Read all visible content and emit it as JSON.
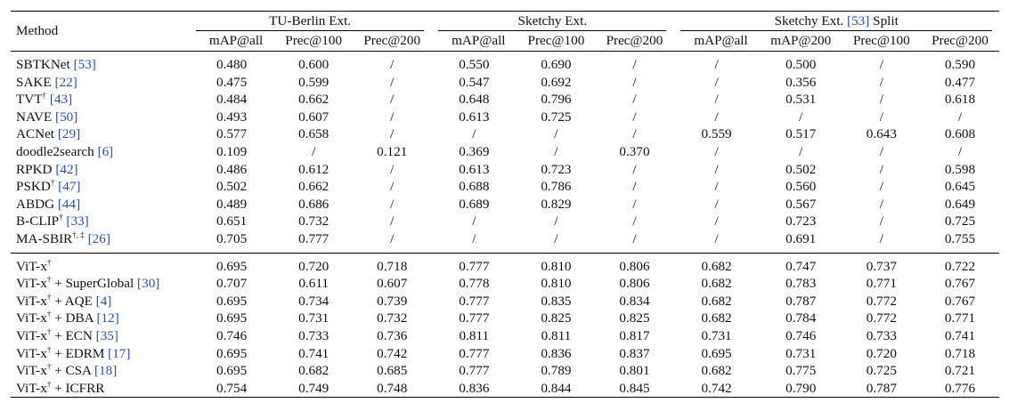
{
  "header": {
    "method": "Method",
    "groups": [
      {
        "title": "TU-Berlin Ext.",
        "cite": ""
      },
      {
        "title": "Sketchy Ext.",
        "cite": ""
      },
      {
        "title": "Sketchy Ext.",
        "cite": "[53]",
        "suffix": "Split"
      }
    ],
    "cols": [
      "mAP@all",
      "Prec@100",
      "Prec@200",
      "mAP@all",
      "Prec@100",
      "Prec@200",
      "mAP@all",
      "mAP@200",
      "Prec@100",
      "Prec@200"
    ]
  },
  "block1": [
    {
      "name": "SBTKNet",
      "sup": "",
      "cite": "[53]",
      "vals": [
        "0.480",
        "0.600",
        "/",
        "0.550",
        "0.690",
        "/",
        "/",
        "0.500",
        "/",
        "0.590"
      ]
    },
    {
      "name": "SAKE",
      "sup": "",
      "cite": "[22]",
      "vals": [
        "0.475",
        "0.599",
        "/",
        "0.547",
        "0.692",
        "/",
        "/",
        "0.356",
        "/",
        "0.477"
      ]
    },
    {
      "name": "TVT",
      "sup": "†",
      "cite": "[43]",
      "vals": [
        "0.484",
        "0.662",
        "/",
        "0.648",
        "0.796",
        "/",
        "/",
        "0.531",
        "/",
        "0.618"
      ]
    },
    {
      "name": "NAVE",
      "sup": "",
      "cite": "[50]",
      "vals": [
        "0.493",
        "0.607",
        "/",
        "0.613",
        "0.725",
        "/",
        "/",
        "/",
        "/",
        "/"
      ]
    },
    {
      "name": "ACNet",
      "sup": "",
      "cite": "[29]",
      "vals": [
        "0.577",
        "0.658",
        "/",
        "/",
        "/",
        "/",
        "0.559",
        "0.517",
        "0.643",
        "0.608"
      ]
    },
    {
      "name": "doodle2search",
      "sup": "",
      "cite": "[6]",
      "vals": [
        "0.109",
        "/",
        "0.121",
        "0.369",
        "/",
        "0.370",
        "/",
        "/",
        "/",
        "/"
      ]
    },
    {
      "name": "RPKD",
      "sup": "",
      "cite": "[42]",
      "vals": [
        "0.486",
        "0.612",
        "/",
        "0.613",
        "0.723",
        "/",
        "/",
        "0.502",
        "/",
        "0.598"
      ]
    },
    {
      "name": "PSKD",
      "sup": "†",
      "cite": "[47]",
      "vals": [
        "0.502",
        "0.662",
        "/",
        "0.688",
        "0.786",
        "/",
        "/",
        "0.560",
        "/",
        "0.645"
      ]
    },
    {
      "name": "ABDG",
      "sup": "",
      "cite": "[44]",
      "vals": [
        "0.489",
        "0.686",
        "/",
        "0.689",
        "0.829",
        "/",
        "/",
        "0.567",
        "/",
        "0.649"
      ]
    },
    {
      "name": "B-CLIP",
      "sup": "†",
      "cite": "[33]",
      "vals": [
        "0.651",
        "0.732",
        "/",
        "/",
        "/",
        "/",
        "/",
        "0.723",
        "/",
        "0.725"
      ]
    },
    {
      "name": "MA-SBIR",
      "sup": "†, ‡",
      "cite": "[26]",
      "vals": [
        "0.705",
        "0.777",
        "/",
        "/",
        "/",
        "/",
        "/",
        "0.691",
        "/",
        "0.755"
      ]
    }
  ],
  "block2": [
    {
      "name": "ViT-x",
      "sup": "†",
      "suffix": "",
      "cite": "",
      "vals": [
        "0.695",
        "0.720",
        "0.718",
        "0.777",
        "0.810",
        "0.806",
        "0.682",
        "0.747",
        "0.737",
        "0.722"
      ]
    },
    {
      "name": "ViT-x",
      "sup": "†",
      "suffix": " + SuperGlobal",
      "cite": "[30]",
      "vals": [
        "0.707",
        "0.611",
        "0.607",
        "0.778",
        "0.810",
        "0.806",
        "0.682",
        "0.783",
        "0.771",
        "0.767"
      ]
    },
    {
      "name": "ViT-x",
      "sup": "†",
      "suffix": " + AQE",
      "cite": "[4]",
      "vals": [
        "0.695",
        "0.734",
        "0.739",
        "0.777",
        "0.835",
        "0.834",
        "0.682",
        "0.787",
        "0.772",
        "0.767"
      ]
    },
    {
      "name": "ViT-x",
      "sup": "†",
      "suffix": " + DBA",
      "cite": "[12]",
      "vals": [
        "0.695",
        "0.731",
        "0.732",
        "0.777",
        "0.825",
        "0.825",
        "0.682",
        "0.784",
        "0.772",
        "0.771"
      ]
    },
    {
      "name": "ViT-x",
      "sup": "†",
      "suffix": " + ECN",
      "cite": "[35]",
      "vals": [
        "0.746",
        "0.733",
        "0.736",
        "0.811",
        "0.811",
        "0.817",
        "0.731",
        "0.746",
        "0.733",
        "0.741"
      ]
    },
    {
      "name": "ViT-x",
      "sup": "†",
      "suffix": " + EDRM",
      "cite": "[17]",
      "vals": [
        "0.695",
        "0.741",
        "0.742",
        "0.777",
        "0.836",
        "0.837",
        "0.695",
        "0.731",
        "0.720",
        "0.718"
      ]
    },
    {
      "name": "ViT-x",
      "sup": "†",
      "suffix": " + CSA",
      "cite": "[18]",
      "vals": [
        "0.695",
        "0.682",
        "0.685",
        "0.777",
        "0.789",
        "0.801",
        "0.682",
        "0.775",
        "0.725",
        "0.721"
      ]
    }
  ],
  "final": {
    "name": "ViT-x",
    "sup": "†",
    "suffix": " + ICFRR",
    "vals": [
      "0.754",
      "0.749",
      "0.748",
      "0.836",
      "0.844",
      "0.845",
      "0.742",
      "0.790",
      "0.787",
      "0.776"
    ]
  }
}
